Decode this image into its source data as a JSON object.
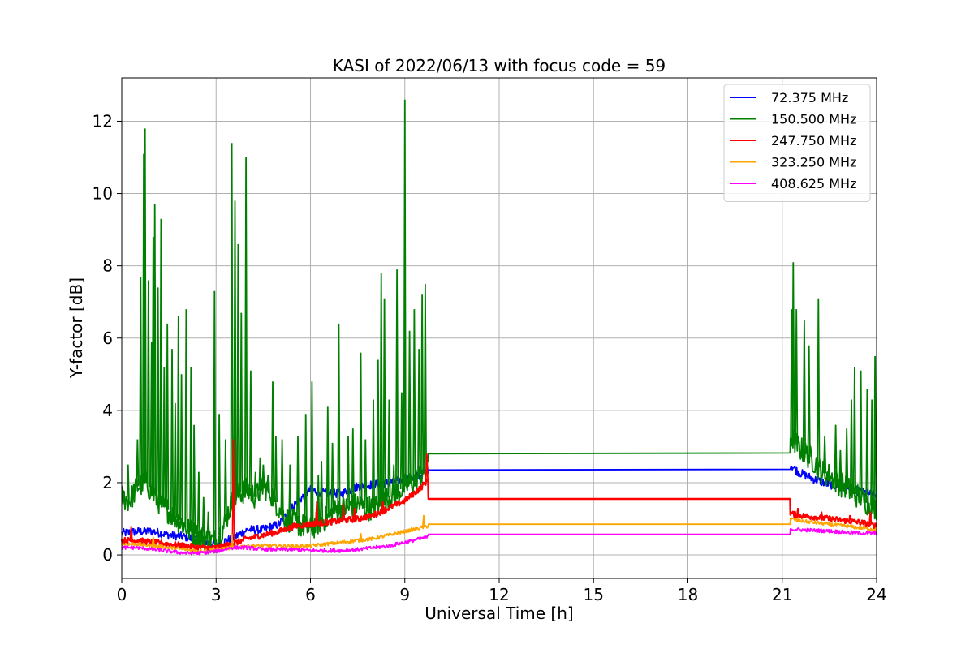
{
  "chart_data": {
    "type": "line",
    "title": "KASI of 2022/06/13 with focus code = 59",
    "xlabel": "Universal Time [h]",
    "ylabel": "Y-factor [dB]",
    "xlim": [
      0,
      24
    ],
    "ylim": [
      -0.65,
      13.2
    ],
    "xticks": [
      0,
      3,
      6,
      9,
      12,
      15,
      18,
      21,
      24
    ],
    "yticks": [
      0,
      2,
      4,
      6,
      8,
      10,
      12
    ],
    "grid": true,
    "legend_position": "top-right",
    "series": [
      {
        "name": " 72.375 MHz",
        "color": "#0000ff",
        "x": [
          0,
          0.5,
          1,
          1.5,
          2,
          2.5,
          3,
          3.5,
          4,
          4.5,
          5,
          5.5,
          6,
          6.5,
          7,
          7.5,
          8,
          8.5,
          9,
          9.5,
          9.75,
          9.76,
          21.25,
          21.26,
          21.5,
          22,
          22.5,
          23,
          23.5,
          24
        ],
        "y": [
          0.6,
          0.65,
          0.65,
          0.55,
          0.5,
          0.4,
          0.3,
          0.45,
          0.7,
          0.7,
          0.85,
          1.4,
          1.8,
          1.7,
          1.7,
          1.9,
          1.95,
          2.0,
          2.1,
          2.2,
          2.35,
          2.35,
          2.37,
          2.5,
          2.3,
          2.1,
          1.95,
          1.85,
          1.75,
          1.65
        ],
        "spikes": []
      },
      {
        "name": "150.500 MHz",
        "color": "#008000",
        "x": [
          0,
          0.25,
          0.5,
          0.75,
          1,
          1.25,
          1.5,
          1.75,
          2,
          2.25,
          2.5,
          2.75,
          3,
          3.25,
          3.5,
          3.75,
          4,
          4.25,
          4.5,
          4.75,
          5,
          5.25,
          5.5,
          5.75,
          6,
          6.25,
          6.5,
          6.75,
          7,
          7.25,
          7.5,
          7.75,
          8,
          8.25,
          8.5,
          8.75,
          9,
          9.25,
          9.5,
          9.75,
          9.76,
          21.25,
          21.26,
          21.5,
          21.75,
          22,
          22.25,
          22.5,
          22.75,
          23,
          23.25,
          23.5,
          23.75,
          24
        ],
        "y": [
          1.6,
          1.5,
          1.9,
          2.0,
          1.7,
          1.4,
          1.2,
          1.0,
          0.8,
          0.6,
          0.5,
          0.4,
          0.4,
          0.8,
          1.5,
          1.7,
          1.8,
          1.6,
          1.9,
          1.7,
          1.3,
          1.0,
          0.9,
          0.8,
          0.7,
          0.9,
          1.0,
          1.2,
          1.3,
          1.3,
          1.4,
          1.3,
          1.3,
          1.4,
          1.6,
          1.7,
          1.9,
          2.0,
          2.2,
          2.4,
          2.8,
          2.82,
          3.3,
          3.0,
          2.8,
          2.6,
          2.3,
          2.2,
          2.0,
          1.9,
          1.7,
          1.6,
          1.4,
          1.3
        ],
        "spikes": [
          [
            0.2,
            2.5
          ],
          [
            0.5,
            3.2
          ],
          [
            0.6,
            7.7
          ],
          [
            0.7,
            11.1
          ],
          [
            0.74,
            11.8
          ],
          [
            0.85,
            7.6
          ],
          [
            0.95,
            5.9
          ],
          [
            1.0,
            8.8
          ],
          [
            1.05,
            9.7
          ],
          [
            1.15,
            7.4
          ],
          [
            1.25,
            9.3
          ],
          [
            1.35,
            5.2
          ],
          [
            1.45,
            6.4
          ],
          [
            1.6,
            5.7
          ],
          [
            1.7,
            4.2
          ],
          [
            1.8,
            6.6
          ],
          [
            1.9,
            5.0
          ],
          [
            2.05,
            6.8
          ],
          [
            2.2,
            5.2
          ],
          [
            2.3,
            3.6
          ],
          [
            2.45,
            2.3
          ],
          [
            2.6,
            1.6
          ],
          [
            2.75,
            1.2
          ],
          [
            2.95,
            7.3
          ],
          [
            3.1,
            3.9
          ],
          [
            3.3,
            3.2
          ],
          [
            3.5,
            11.4
          ],
          [
            3.6,
            9.8
          ],
          [
            3.7,
            8.6
          ],
          [
            3.8,
            6.7
          ],
          [
            3.95,
            11.0
          ],
          [
            4.1,
            5.1
          ],
          [
            4.25,
            2.3
          ],
          [
            4.4,
            2.7
          ],
          [
            4.5,
            2.5
          ],
          [
            4.65,
            2.2
          ],
          [
            4.8,
            4.8
          ],
          [
            4.9,
            3.3
          ],
          [
            5.1,
            3.2
          ],
          [
            5.35,
            2.5
          ],
          [
            5.6,
            3.3
          ],
          [
            5.85,
            3.9
          ],
          [
            6.05,
            4.8
          ],
          [
            6.25,
            2.2
          ],
          [
            6.35,
            2.6
          ],
          [
            6.55,
            4.1
          ],
          [
            6.7,
            3.1
          ],
          [
            6.9,
            6.4
          ],
          [
            7.2,
            3.3
          ],
          [
            7.35,
            3.5
          ],
          [
            7.6,
            5.6
          ],
          [
            7.75,
            3.2
          ],
          [
            8.0,
            4.3
          ],
          [
            8.15,
            5.4
          ],
          [
            8.25,
            7.8
          ],
          [
            8.35,
            7.1
          ],
          [
            8.5,
            4.3
          ],
          [
            8.65,
            2.5
          ],
          [
            8.75,
            7.9
          ],
          [
            8.9,
            4.5
          ],
          [
            9.0,
            12.6
          ],
          [
            9.15,
            6.2
          ],
          [
            9.3,
            6.8
          ],
          [
            9.45,
            5.7
          ],
          [
            9.55,
            7.2
          ],
          [
            9.65,
            7.5
          ],
          [
            21.3,
            6.8
          ],
          [
            21.35,
            8.1
          ],
          [
            21.45,
            6.8
          ],
          [
            21.7,
            6.5
          ],
          [
            21.85,
            5.8
          ],
          [
            22.15,
            7.1
          ],
          [
            22.35,
            3.3
          ],
          [
            22.7,
            3.6
          ],
          [
            22.85,
            2.9
          ],
          [
            23.05,
            3.5
          ],
          [
            23.2,
            4.3
          ],
          [
            23.3,
            5.2
          ],
          [
            23.5,
            5.1
          ],
          [
            23.7,
            4.6
          ],
          [
            23.85,
            4.3
          ],
          [
            23.95,
            5.5
          ]
        ]
      },
      {
        "name": "247.750 MHz",
        "color": "#ff0000",
        "x": [
          0,
          0.5,
          1,
          1.5,
          2,
          2.5,
          3,
          3.5,
          4,
          4.5,
          5,
          5.5,
          6,
          6.5,
          7,
          7.5,
          8,
          8.5,
          9,
          9.5,
          9.75,
          9.76,
          21.25,
          21.26,
          21.5,
          22,
          22.5,
          23,
          23.5,
          24
        ],
        "y": [
          0.4,
          0.4,
          0.35,
          0.3,
          0.25,
          0.2,
          0.2,
          0.3,
          0.45,
          0.55,
          0.65,
          0.8,
          0.85,
          0.9,
          0.95,
          1.0,
          1.1,
          1.3,
          1.5,
          1.85,
          2.1,
          1.55,
          1.55,
          1.15,
          1.1,
          1.05,
          1.0,
          0.95,
          0.9,
          0.8
        ],
        "spikes": [
          [
            0.3,
            0.8
          ],
          [
            3.55,
            3.2
          ],
          [
            6.2,
            1.5
          ],
          [
            7.05,
            1.4
          ],
          [
            7.4,
            1.3
          ],
          [
            8.3,
            1.5
          ],
          [
            9.7,
            2.8
          ],
          [
            21.5,
            1.3
          ],
          [
            22.25,
            1.2
          ],
          [
            23.15,
            1.1
          ],
          [
            23.8,
            1.2
          ]
        ]
      },
      {
        "name": "323.250 MHz",
        "color": "#ffa500",
        "x": [
          0,
          0.5,
          1,
          1.5,
          2,
          2.5,
          3,
          3.5,
          4,
          4.5,
          5,
          5.5,
          6,
          6.5,
          7,
          7.5,
          8,
          8.5,
          9,
          9.5,
          9.75,
          9.76,
          21.25,
          21.26,
          21.5,
          22,
          22.5,
          23,
          23.5,
          24
        ],
        "y": [
          0.3,
          0.3,
          0.25,
          0.2,
          0.15,
          0.1,
          0.15,
          0.2,
          0.25,
          0.25,
          0.25,
          0.25,
          0.25,
          0.3,
          0.35,
          0.4,
          0.45,
          0.55,
          0.65,
          0.75,
          0.8,
          0.85,
          0.85,
          1.0,
          0.95,
          0.9,
          0.85,
          0.8,
          0.75,
          0.7
        ],
        "spikes": [
          [
            1.0,
            0.5
          ],
          [
            3.5,
            0.6
          ],
          [
            7.6,
            0.6
          ],
          [
            9.6,
            1.1
          ]
        ]
      },
      {
        "name": "408.625 MHz",
        "color": "#ff00ff",
        "x": [
          0,
          0.5,
          1,
          1.5,
          2,
          2.5,
          3,
          3.5,
          4,
          4.5,
          5,
          5.5,
          6,
          6.5,
          7,
          7.5,
          8,
          8.5,
          9,
          9.5,
          9.75,
          9.76,
          21.25,
          21.26,
          21.5,
          22,
          22.5,
          23,
          23.5,
          24
        ],
        "y": [
          0.2,
          0.2,
          0.15,
          0.1,
          0.05,
          0.05,
          0.1,
          0.2,
          0.2,
          0.15,
          0.15,
          0.15,
          0.12,
          0.12,
          0.12,
          0.15,
          0.2,
          0.25,
          0.35,
          0.45,
          0.5,
          0.57,
          0.57,
          0.72,
          0.7,
          0.68,
          0.66,
          0.63,
          0.6,
          0.6
        ],
        "spikes": []
      }
    ]
  }
}
